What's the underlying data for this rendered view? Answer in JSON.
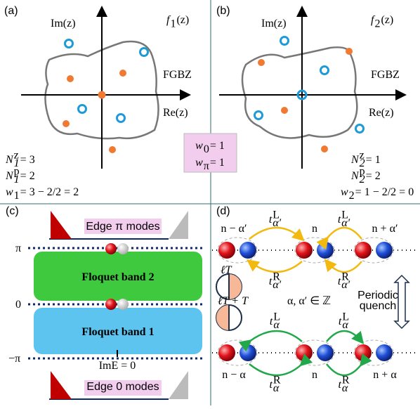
{
  "panel_a": {
    "label": "(a)",
    "im_axis": "Im(z)",
    "re_axis": "Re(z)",
    "function": {
      "base": "f",
      "sub": "1",
      "rest": "(z)"
    },
    "curve_label": "FGBZ",
    "zeros": {
      "base": "N",
      "sub": "1",
      "sup": "z",
      "rest": " = 3"
    },
    "poles": {
      "base": "N",
      "sub": "1",
      "sup": "p",
      "rest": " = 2"
    },
    "winding": {
      "base": "w",
      "sub": "1",
      "rest": " = 3 − 2/2 = 2"
    }
  },
  "panel_b": {
    "label": "(b)",
    "im_axis": "Im(z)",
    "re_axis": "Re(z)",
    "function": {
      "base": "f",
      "sub": "2",
      "rest": "(z)"
    },
    "curve_label": "FGBZ",
    "zeros": {
      "base": "N",
      "sub": "2",
      "sup": "z",
      "rest": " = 1"
    },
    "poles": {
      "base": "N",
      "sub": "2",
      "sup": "p",
      "rest": " = 2"
    },
    "winding": {
      "base": "w",
      "sub": "2",
      "rest": " = 1 − 2/2 = 0"
    }
  },
  "invariants": {
    "w0": {
      "base": "w",
      "sub": "0",
      "rest": " = 1"
    },
    "wpi": {
      "base": "w",
      "sub": "π",
      "rest": " = 1"
    }
  },
  "panel_c": {
    "label": "(c)",
    "top_edge": "Edge π modes",
    "level_pi": "π",
    "level_0": "0",
    "level_minus_pi": "−π",
    "band_2": "Floquet band 2",
    "band_1": "Floquet band 1",
    "im_label": "ImE = 0",
    "bottom_edge": "Edge 0 modes"
  },
  "panel_d": {
    "label": "(d)",
    "top_sites": [
      "n − α′",
      "n",
      "n + α′"
    ],
    "top_hops": [
      {
        "base": "t",
        "sup": "L",
        "sub": "α′"
      },
      {
        "base": "t",
        "sup": "L",
        "sub": "α′"
      },
      {
        "base": "t",
        "sup": "R",
        "sub": "α′"
      },
      {
        "base": "t",
        "sup": "R",
        "sub": "α′"
      }
    ],
    "clock_1": "ℓT",
    "clock_2": "ℓT + T",
    "set": "α, α′ ∈ ℤ",
    "quench": "Periodic quench",
    "bottom_hops": [
      {
        "base": "t",
        "sup": "L",
        "sub": "α"
      },
      {
        "base": "t",
        "sup": "L",
        "sub": "α"
      },
      {
        "base": "t",
        "sup": "R",
        "sub": "α"
      },
      {
        "base": "t",
        "sup": "R",
        "sub": "α"
      }
    ],
    "bottom_sites": [
      "n − α",
      "n",
      "n + α"
    ]
  }
}
